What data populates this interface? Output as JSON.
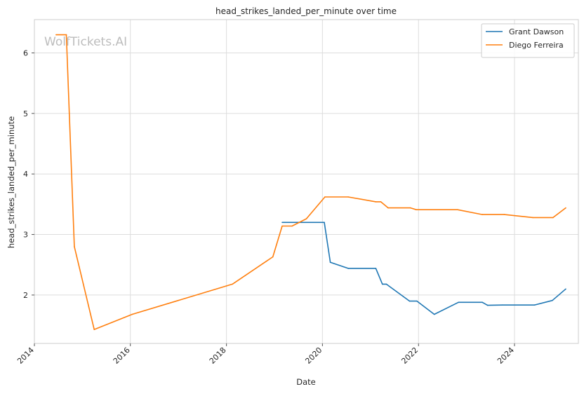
{
  "chart_data": {
    "type": "line",
    "title": "head_strikes_landed_per_minute over time",
    "xlabel": "Date",
    "ylabel": "head_strikes_landed_per_minute",
    "watermark": "WolfTickets.AI",
    "grid": true,
    "legend_position": "top-right",
    "xlim": [
      "2014-01-01",
      "2025-05-01"
    ],
    "ylim": [
      1.2,
      6.55
    ],
    "x_ticks": [
      "2014",
      "2016",
      "2018",
      "2020",
      "2022",
      "2024"
    ],
    "y_ticks": [
      2,
      3,
      4,
      5,
      6
    ],
    "series": [
      {
        "name": "Grant Dawson",
        "color": "#1f77b4",
        "points": [
          {
            "x": "2019-03-01",
            "y": 3.2
          },
          {
            "x": "2020-01-15",
            "y": 3.2
          },
          {
            "x": "2020-03-01",
            "y": 2.54
          },
          {
            "x": "2020-07-15",
            "y": 2.44
          },
          {
            "x": "2021-02-10",
            "y": 2.44
          },
          {
            "x": "2021-04-01",
            "y": 2.18
          },
          {
            "x": "2021-05-01",
            "y": 2.18
          },
          {
            "x": "2021-10-25",
            "y": 1.9
          },
          {
            "x": "2021-12-20",
            "y": 1.9
          },
          {
            "x": "2022-05-01",
            "y": 1.68
          },
          {
            "x": "2022-11-01",
            "y": 1.88
          },
          {
            "x": "2023-05-01",
            "y": 1.88
          },
          {
            "x": "2023-06-10",
            "y": 1.83
          },
          {
            "x": "2023-10-01",
            "y": 1.835
          },
          {
            "x": "2024-06-01",
            "y": 1.835
          },
          {
            "x": "2024-10-15",
            "y": 1.91
          },
          {
            "x": "2025-01-25",
            "y": 2.1
          }
        ]
      },
      {
        "name": "Diego Ferreira",
        "color": "#ff7f0e",
        "points": [
          {
            "x": "2014-06-15",
            "y": 6.3
          },
          {
            "x": "2014-09-01",
            "y": 6.3
          },
          {
            "x": "2014-11-01",
            "y": 2.8
          },
          {
            "x": "2015-04-01",
            "y": 1.43
          },
          {
            "x": "2016-01-15",
            "y": 1.68
          },
          {
            "x": "2018-02-15",
            "y": 2.18
          },
          {
            "x": "2018-12-20",
            "y": 2.63
          },
          {
            "x": "2019-03-01",
            "y": 3.14
          },
          {
            "x": "2019-05-15",
            "y": 3.14
          },
          {
            "x": "2019-09-01",
            "y": 3.26
          },
          {
            "x": "2020-01-20",
            "y": 3.62
          },
          {
            "x": "2020-07-15",
            "y": 3.62
          },
          {
            "x": "2021-02-10",
            "y": 3.54
          },
          {
            "x": "2021-03-20",
            "y": 3.54
          },
          {
            "x": "2021-05-15",
            "y": 3.44
          },
          {
            "x": "2021-11-01",
            "y": 3.44
          },
          {
            "x": "2021-12-15",
            "y": 3.41
          },
          {
            "x": "2022-10-25",
            "y": 3.41
          },
          {
            "x": "2023-05-01",
            "y": 3.33
          },
          {
            "x": "2023-10-15",
            "y": 3.33
          },
          {
            "x": "2024-05-20",
            "y": 3.28
          },
          {
            "x": "2024-10-20",
            "y": 3.28
          },
          {
            "x": "2025-01-25",
            "y": 3.44
          }
        ]
      }
    ]
  }
}
